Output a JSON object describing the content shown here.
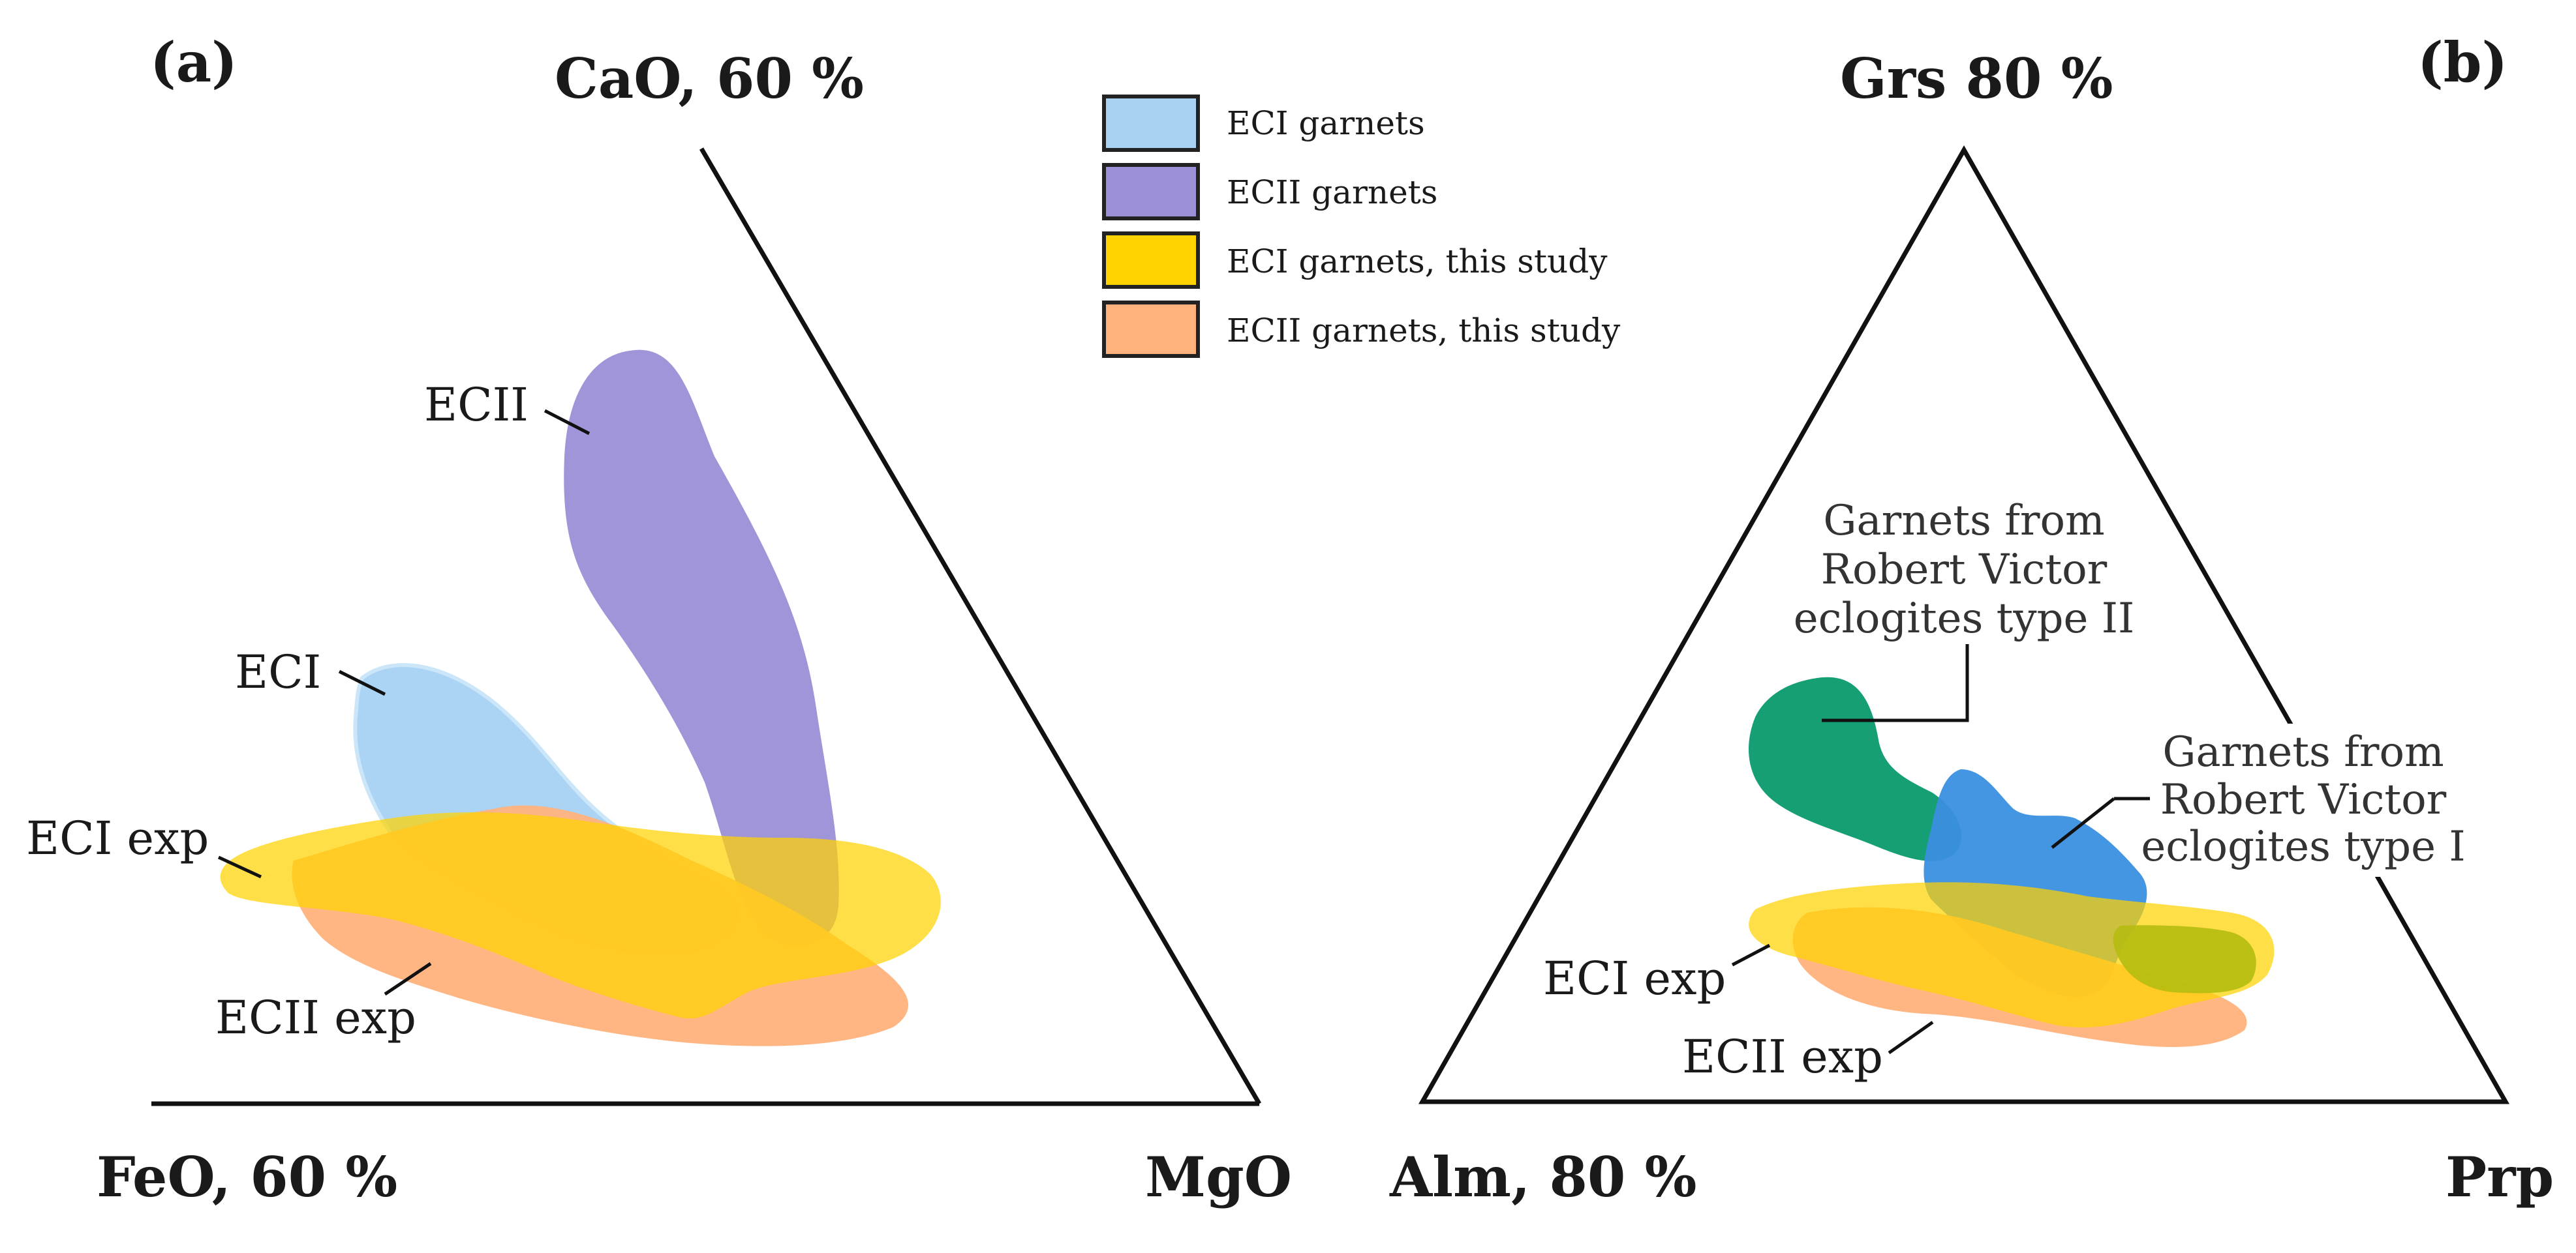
{
  "panel_a": {
    "tag": "(a)",
    "apex_top": "CaO, 60 %",
    "apex_left": "FeO, 60 %",
    "apex_right": "MgO",
    "fields": {
      "ecii": "ECII",
      "eci": "ECI",
      "eci_exp": "ECI exp",
      "ecii_exp": "ECII exp"
    }
  },
  "panel_b": {
    "tag": "(b)",
    "apex_top": "Grs 80 %",
    "apex_left": "Alm, 80 %",
    "apex_right": "Prp",
    "rv_type2": [
      "Garnets from",
      "Robert Victor",
      "eclogites type II"
    ],
    "rv_type1": [
      "Garnets from",
      "Robert Victor",
      "eclogites type I"
    ],
    "fields": {
      "eci_exp": "ECI exp",
      "ecii_exp": "ECII exp"
    }
  },
  "legend": [
    {
      "label": "ECI garnets",
      "color": "#a7d2f4"
    },
    {
      "label": "ECII garnets",
      "color": "#9b8fd7"
    },
    {
      "label": "ECI garnets, this study",
      "color": "#ffd200"
    },
    {
      "label": "ECII garnets, this study",
      "color": "#ffb27c"
    }
  ],
  "colors": {
    "eci": "#a7d2f4",
    "ecii": "#9b8fd7",
    "eci_this_study": "#ffd200",
    "ecii_this_study": "#ffb27c",
    "rv_type2": "#0a9a6e",
    "rv_type1": "#3a8fe0",
    "overlap": "#b5bd10"
  }
}
